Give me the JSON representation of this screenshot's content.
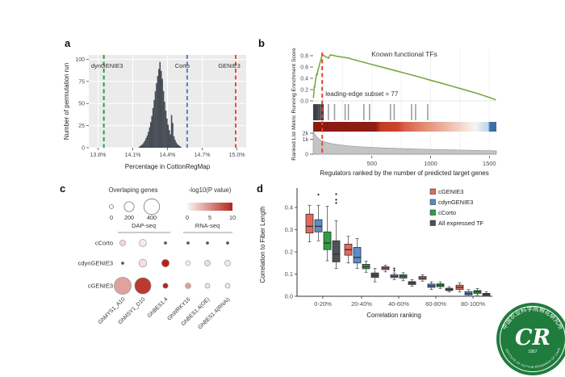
{
  "panels": {
    "a": {
      "label": "a"
    },
    "b": {
      "label": "b"
    },
    "c": {
      "label": "c"
    },
    "d": {
      "label": "d"
    }
  },
  "chart_data": [
    {
      "panel": "a",
      "type": "bar",
      "title": "",
      "xlabel": "Percentage in CottonRegMap",
      "ylabel": "Number of permutation run",
      "xlim": [
        13.72,
        15.08
      ],
      "ylim": [
        0,
        105
      ],
      "xticks": [
        {
          "v": 13.8,
          "label": "13.8%"
        },
        {
          "v": 14.1,
          "label": "14.1%"
        },
        {
          "v": 14.4,
          "label": "14.4%"
        },
        {
          "v": 14.7,
          "label": "14.7%"
        },
        {
          "v": 15.0,
          "label": "15.0%"
        }
      ],
      "yticks": [
        0,
        25,
        50,
        75,
        100
      ],
      "bin_width": 0.01,
      "bar_color": "#484d55",
      "panel_bg": "#ebebeb",
      "grid_color": "#ffffff",
      "bars": [
        [
          14.15,
          1
        ],
        [
          14.16,
          2
        ],
        [
          14.17,
          3
        ],
        [
          14.18,
          4
        ],
        [
          14.19,
          6
        ],
        [
          14.2,
          8
        ],
        [
          14.21,
          11
        ],
        [
          14.22,
          14
        ],
        [
          14.23,
          18
        ],
        [
          14.24,
          23
        ],
        [
          14.25,
          29
        ],
        [
          14.26,
          36
        ],
        [
          14.27,
          45
        ],
        [
          14.28,
          54
        ],
        [
          14.29,
          64
        ],
        [
          14.3,
          73
        ],
        [
          14.31,
          81
        ],
        [
          14.32,
          89
        ],
        [
          14.33,
          97
        ],
        [
          14.34,
          87
        ],
        [
          14.35,
          78
        ],
        [
          14.36,
          64
        ],
        [
          14.37,
          52
        ],
        [
          14.38,
          42
        ],
        [
          14.39,
          33
        ],
        [
          14.4,
          26
        ],
        [
          14.41,
          20
        ],
        [
          14.42,
          15
        ],
        [
          14.43,
          37
        ],
        [
          14.44,
          28
        ],
        [
          14.45,
          13
        ],
        [
          14.46,
          9
        ],
        [
          14.47,
          6
        ],
        [
          14.48,
          4
        ],
        [
          14.49,
          3
        ],
        [
          14.5,
          2
        ],
        [
          14.51,
          1
        ]
      ],
      "vlines": [
        {
          "x": 13.85,
          "label": "dynGENIE3",
          "color": "#23a14b",
          "label_dx": 4
        },
        {
          "x": 14.57,
          "label": "Corto",
          "color": "#5381c1",
          "label_dx": -6
        },
        {
          "x": 14.99,
          "label": "GENIE3",
          "color": "#e8432d",
          "label_dx": -8
        }
      ]
    },
    {
      "panel": "b",
      "type": "line",
      "title": "Known functional TFs",
      "annotation": "leading-edge subset = 77",
      "xlabel": "Regulators ranked by the number of predicted target genes",
      "ylabel": "Ranked List Metric Running Enrichment Score",
      "x_max": 1560,
      "xticks": [
        500,
        1000,
        1500
      ],
      "es_ticks": [
        "0.0",
        "0.2",
        "0.4",
        "0.6",
        "0.8"
      ],
      "curve_color": "#7aa843",
      "vline_color": "#e8432d",
      "leading_edge_x": 77,
      "es_curve": [
        [
          2,
          0.05
        ],
        [
          6,
          0.14
        ],
        [
          10,
          0.26
        ],
        [
          13,
          0.24
        ],
        [
          18,
          0.33
        ],
        [
          24,
          0.42
        ],
        [
          30,
          0.48
        ],
        [
          34,
          0.46
        ],
        [
          40,
          0.54
        ],
        [
          48,
          0.6
        ],
        [
          56,
          0.66
        ],
        [
          64,
          0.72
        ],
        [
          72,
          0.78
        ],
        [
          77,
          0.82
        ],
        [
          85,
          0.81
        ],
        [
          100,
          0.79
        ],
        [
          118,
          0.77
        ],
        [
          132,
          0.755
        ],
        [
          140,
          0.8
        ],
        [
          150,
          0.815
        ],
        [
          170,
          0.805
        ],
        [
          200,
          0.79
        ],
        [
          250,
          0.775
        ],
        [
          300,
          0.76
        ],
        [
          320,
          0.745
        ],
        [
          400,
          0.7
        ],
        [
          500,
          0.645
        ],
        [
          600,
          0.59
        ],
        [
          700,
          0.535
        ],
        [
          800,
          0.48
        ],
        [
          900,
          0.425
        ],
        [
          1000,
          0.365
        ],
        [
          1100,
          0.31
        ],
        [
          1200,
          0.25
        ],
        [
          1300,
          0.19
        ],
        [
          1400,
          0.13
        ],
        [
          1500,
          0.06
        ],
        [
          1555,
          0.02
        ]
      ],
      "rug_black": [
        5,
        12,
        20,
        28,
        38,
        50,
        62,
        74,
        84
      ],
      "rug_gray": [
        130,
        182,
        272,
        300,
        432,
        480,
        658,
        690,
        838,
        872,
        975
      ],
      "metric_ticks": [
        {
          "v": 2000,
          "label": "2k"
        },
        {
          "v": 1000,
          "label": "1k"
        },
        {
          "v": 0,
          "label": "0"
        }
      ],
      "metric_curve": [
        [
          0,
          2350
        ],
        [
          10,
          2000
        ],
        [
          25,
          1500
        ],
        [
          45,
          1100
        ],
        [
          70,
          850
        ],
        [
          100,
          680
        ],
        [
          150,
          520
        ],
        [
          220,
          400
        ],
        [
          320,
          300
        ],
        [
          450,
          230
        ],
        [
          600,
          180
        ],
        [
          800,
          135
        ],
        [
          1000,
          105
        ],
        [
          1200,
          82
        ],
        [
          1400,
          65
        ],
        [
          1560,
          50
        ]
      ],
      "colorbar_stops": [
        [
          0,
          "#8a1a12"
        ],
        [
          0.34,
          "#8f1d14"
        ],
        [
          0.37,
          "#c23b27"
        ],
        [
          0.46,
          "#c94330"
        ],
        [
          0.5,
          "#d8614a"
        ],
        [
          0.6,
          "#e28a70"
        ],
        [
          0.74,
          "#eebbaa"
        ],
        [
          0.85,
          "#f8e7e0"
        ],
        [
          0.89,
          "#f2f4f6"
        ],
        [
          0.93,
          "#cfdeee"
        ],
        [
          0.955,
          "#c2d6ea"
        ],
        [
          0.965,
          "#3a6ea5"
        ],
        [
          1,
          "#3a6ea5"
        ]
      ]
    },
    {
      "panel": "c",
      "type": "scatter",
      "size_legend": {
        "title": "Overlaping genes",
        "values": [
          0,
          200,
          400
        ]
      },
      "color_legend": {
        "title": "-log10(P value)",
        "ticks": [
          0,
          5,
          10
        ],
        "from": "#fdf6f5",
        "to": "#b2251a"
      },
      "groups": [
        {
          "label": "DAP-seq"
        },
        {
          "label": "RNA-seq"
        }
      ],
      "columns": [
        "GhMYS1_A10",
        "GhMSY1_D10",
        "GhBES1.4",
        "GhWRKY16",
        "GhBES1.4(OE)",
        "GhBES1.4(RNAi)"
      ],
      "rows": [
        "cCorto",
        "cdynGENIE3",
        "cGENIE3"
      ],
      "ns_color": "#555b64",
      "points": [
        [
          {
            "size": 60,
            "p": 1.5
          },
          {
            "size": 110,
            "p": 0.6
          },
          {
            "ns": true
          },
          {
            "ns": true
          },
          {
            "ns": true
          },
          {
            "ns": true
          }
        ],
        [
          {
            "ns": true
          },
          {
            "size": 130,
            "p": 1.0
          },
          {
            "size": 120,
            "p": 10
          },
          {
            "size": 25,
            "p": 0.4
          },
          {
            "size": 60,
            "p": 1.2
          },
          {
            "size": 60,
            "p": 0.7
          }
        ],
        [
          {
            "size": 450,
            "p": 4
          },
          {
            "size": 420,
            "p": 9
          },
          {
            "size": 40,
            "p": 10
          },
          {
            "size": 55,
            "p": 4
          },
          {
            "size": 30,
            "p": 1.0
          },
          {
            "size": 30,
            "p": 0.8
          }
        ]
      ]
    },
    {
      "panel": "d",
      "type": "boxplot",
      "xlabel": "Correlation ranking",
      "ylabel": "Correlation to Fiber Length",
      "categories": [
        "0-20%",
        "20-40%",
        "40-60%",
        "60-80%",
        "80-100%"
      ],
      "yticks": [
        0.0,
        0.1,
        0.2,
        0.3,
        0.4
      ],
      "series": [
        {
          "name": "cGENIE3",
          "color": "#e2695d",
          "boxes": [
            {
              "lo": 0.245,
              "q1": 0.285,
              "med": 0.315,
              "q3": 0.37,
              "hi": 0.41
            },
            {
              "lo": 0.15,
              "q1": 0.185,
              "med": 0.21,
              "q3": 0.235,
              "hi": 0.27
            },
            {
              "lo": 0.11,
              "q1": 0.12,
              "med": 0.127,
              "q3": 0.133,
              "hi": 0.14
            },
            {
              "lo": 0.068,
              "q1": 0.076,
              "med": 0.082,
              "q3": 0.089,
              "hi": 0.097
            },
            {
              "lo": 0.02,
              "q1": 0.031,
              "med": 0.04,
              "q3": 0.05,
              "hi": 0.06
            }
          ]
        },
        {
          "name": "cdynGENIE3",
          "color": "#5c8bc7",
          "boxes": [
            {
              "lo": 0.25,
              "q1": 0.29,
              "med": 0.315,
              "q3": 0.345,
              "hi": 0.41,
              "outliers": [
                0.458
              ]
            },
            {
              "lo": 0.125,
              "q1": 0.15,
              "med": 0.175,
              "q3": 0.22,
              "hi": 0.26
            },
            {
              "lo": 0.075,
              "q1": 0.084,
              "med": 0.09,
              "q3": 0.097,
              "hi": 0.105,
              "outliers": [
                0.115,
                0.125
              ]
            },
            {
              "lo": 0.03,
              "q1": 0.04,
              "med": 0.047,
              "q3": 0.055,
              "hi": 0.065
            },
            {
              "lo": 0.0,
              "q1": 0.006,
              "med": 0.012,
              "q3": 0.021,
              "hi": 0.03
            }
          ]
        },
        {
          "name": "cCorto",
          "color": "#2f9e3f",
          "boxes": [
            {
              "lo": 0.16,
              "q1": 0.21,
              "med": 0.24,
              "q3": 0.29,
              "hi": 0.405
            },
            {
              "lo": 0.108,
              "q1": 0.124,
              "med": 0.133,
              "q3": 0.144,
              "hi": 0.158
            },
            {
              "lo": 0.07,
              "q1": 0.082,
              "med": 0.09,
              "q3": 0.097,
              "hi": 0.106
            },
            {
              "lo": 0.035,
              "q1": 0.043,
              "med": 0.05,
              "q3": 0.056,
              "hi": 0.065
            },
            {
              "lo": 0.006,
              "q1": 0.013,
              "med": 0.02,
              "q3": 0.026,
              "hi": 0.035
            }
          ]
        },
        {
          "name": "All expressed TF",
          "color": "#4d5258",
          "boxes": [
            {
              "lo": 0.125,
              "q1": 0.155,
              "med": 0.19,
              "q3": 0.25,
              "hi": 0.34,
              "outliers": [
                0.42,
                0.435,
                0.46
              ]
            },
            {
              "lo": 0.065,
              "q1": 0.085,
              "med": 0.095,
              "q3": 0.105,
              "hi": 0.125
            },
            {
              "lo": 0.045,
              "q1": 0.053,
              "med": 0.06,
              "q3": 0.066,
              "hi": 0.075
            },
            {
              "lo": 0.02,
              "q1": 0.026,
              "med": 0.03,
              "q3": 0.036,
              "hi": 0.043
            },
            {
              "lo": 0.0,
              "q1": 0.004,
              "med": 0.008,
              "q3": 0.013,
              "hi": 0.02
            }
          ]
        }
      ]
    }
  ],
  "logo": {
    "top_text": "中国农业科学院棉花研究所",
    "bottom_text": "INSTITUTE OF COTTON RESEARCH OF CAAS",
    "year": "1957",
    "monogram": "CR",
    "color": "#1f7c3d"
  }
}
